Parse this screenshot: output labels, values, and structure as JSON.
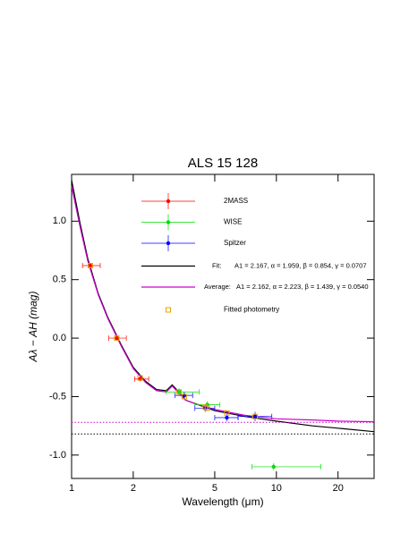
{
  "chart_data": {
    "type": "scatter",
    "title": "ALS 15 128",
    "x_label": "Wavelength (μm)",
    "y_label": "Aλ − AH (mag)",
    "x_scale": "log",
    "xlim": [
      1,
      30
    ],
    "xticks": [
      1,
      2,
      5,
      10,
      20
    ],
    "ylim": [
      -1.2,
      1.4
    ],
    "yticks": [
      {
        "value": -1.0,
        "label": "-1.0"
      },
      {
        "value": -0.5,
        "label": "-0.5"
      },
      {
        "value": 0.0,
        "label": "0.0"
      },
      {
        "value": 0.5,
        "label": "0.5"
      },
      {
        "value": 1.0,
        "label": "1.0"
      }
    ],
    "series": [
      {
        "name": "2MASS",
        "color": "#ff0000",
        "x": [
          1.235,
          1.662,
          2.159
        ],
        "values": [
          0.62,
          0.0,
          -0.35
        ],
        "xlo": [
          1.13,
          1.52,
          2.03
        ],
        "xhi": [
          1.38,
          1.85,
          2.38
        ],
        "yerr": [
          0.02,
          0.02,
          0.02
        ]
      },
      {
        "name": "WISE",
        "color": "#00dd00",
        "x": [
          3.35,
          4.6,
          9.7
        ],
        "values": [
          -0.46,
          -0.57,
          -1.1
        ],
        "xlo": [
          2.9,
          4.0,
          7.6
        ],
        "xhi": [
          4.2,
          5.3,
          16.5
        ],
        "yerr": [
          0.03,
          0.03,
          0.03
        ]
      },
      {
        "name": "Spitzer",
        "color": "#0000ff",
        "x": [
          3.55,
          4.49,
          5.73,
          7.87
        ],
        "values": [
          -0.49,
          -0.6,
          -0.68,
          -0.67
        ],
        "xlo": [
          3.2,
          4.0,
          5.0,
          6.5
        ],
        "xhi": [
          3.9,
          5.0,
          6.5,
          9.5
        ],
        "yerr": [
          0.03,
          0.03,
          0.03,
          0.04
        ]
      }
    ],
    "fitted": {
      "name": "Fitted photometry",
      "color": "#e8a000",
      "x": [
        1.235,
        1.662,
        2.159,
        3.35,
        3.55,
        4.49,
        4.6,
        5.73,
        7.87
      ],
      "values": [
        0.62,
        0.0,
        -0.34,
        -0.46,
        -0.5,
        -0.59,
        -0.6,
        -0.64,
        -0.67
      ]
    },
    "curves": [
      {
        "name": "Fit:",
        "params": "A1 = 2.167, α = 1.959, β = 0.854, γ = 0.0707",
        "color": "#000000",
        "asymptote": -0.82,
        "x": [
          1,
          1.1,
          1.2,
          1.35,
          1.5,
          1.75,
          2,
          2.3,
          2.6,
          2.9,
          3.1,
          3.3,
          3.6,
          4,
          5,
          7,
          10,
          15,
          20,
          30
        ],
        "values": [
          1.35,
          0.98,
          0.68,
          0.38,
          0.18,
          -0.06,
          -0.25,
          -0.37,
          -0.44,
          -0.45,
          -0.4,
          -0.45,
          -0.53,
          -0.56,
          -0.62,
          -0.67,
          -0.71,
          -0.75,
          -0.77,
          -0.8
        ]
      },
      {
        "name": "Average:",
        "params": "A1 = 2.162, α = 2.223, β = 1.439, γ = 0.0540",
        "color": "#cc00cc",
        "asymptote": -0.72,
        "x": [
          1,
          1.1,
          1.2,
          1.35,
          1.5,
          1.75,
          2,
          2.3,
          2.6,
          2.9,
          3.1,
          3.3,
          3.6,
          4,
          5,
          7,
          10,
          15,
          20,
          30
        ],
        "values": [
          1.3,
          0.95,
          0.66,
          0.37,
          0.17,
          -0.07,
          -0.26,
          -0.38,
          -0.45,
          -0.46,
          -0.41,
          -0.46,
          -0.53,
          -0.56,
          -0.61,
          -0.66,
          -0.69,
          -0.7,
          -0.71,
          -0.715
        ]
      }
    ]
  }
}
